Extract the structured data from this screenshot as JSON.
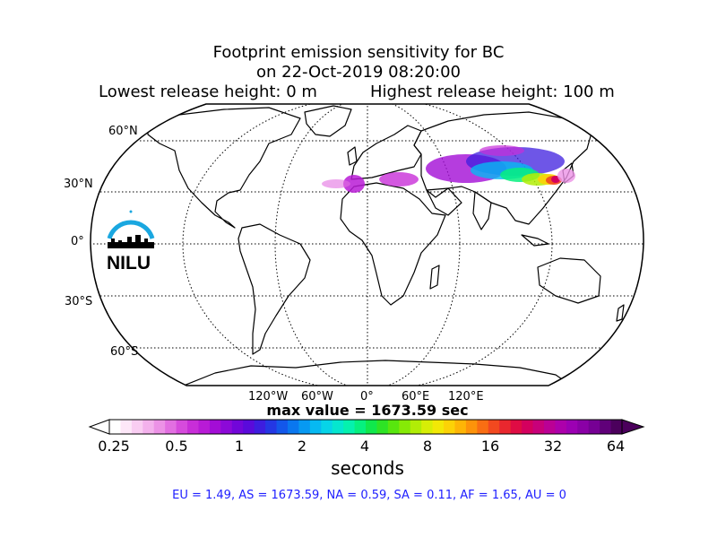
{
  "title": {
    "line1": "Footprint emission sensitivity for BC",
    "line2": "on 22-Oct-2019 08:20:00",
    "lowest": "Lowest release height: 0 m",
    "highest": "Highest release height: 100 m"
  },
  "map": {
    "projection": "Robinson",
    "lat_labels": [
      "60°N",
      "30°N",
      "0°",
      "30°S",
      "60°S"
    ],
    "lon_labels": [
      "120°W",
      "60°W",
      "0°",
      "60°E",
      "120°E"
    ],
    "logo_text": "NILU"
  },
  "max_value": "max value = 1673.59 sec",
  "colorbar": {
    "tick_labels": [
      "0.25",
      "0.5",
      "1",
      "2",
      "4",
      "8",
      "16",
      "32",
      "64"
    ],
    "units": "seconds",
    "colors": [
      "#ffffff",
      "#fde7f8",
      "#f9cdf2",
      "#f3b1ec",
      "#ec92e6",
      "#e26fe1",
      "#d64bdc",
      "#c82ed8",
      "#b81bd6",
      "#a30dd6",
      "#8c09d8",
      "#7206d9",
      "#5a0adb",
      "#3d1ddf",
      "#2437e4",
      "#1357ea",
      "#0a77ef",
      "#0799f2",
      "#06b9f2",
      "#06d4e8",
      "#05e6cf",
      "#05f1ae",
      "#06f07f",
      "#10e84c",
      "#2ee325",
      "#58e60e",
      "#86ea06",
      "#b1ed06",
      "#d7ee06",
      "#f2e806",
      "#fcd206",
      "#feb506",
      "#fd930a",
      "#f96e13",
      "#f2491f",
      "#e9272e",
      "#df0c44",
      "#d4005e",
      "#c8007a",
      "#bb0095",
      "#ad00ab",
      "#9c00b3",
      "#8a00a6",
      "#760094",
      "#600079",
      "#4b005c"
    ]
  },
  "stats": "EU = 1.49,  AS = 1673.59,  NA = 0.59,  SA = 0.11,  AF = 1.65,  AU = 0"
}
